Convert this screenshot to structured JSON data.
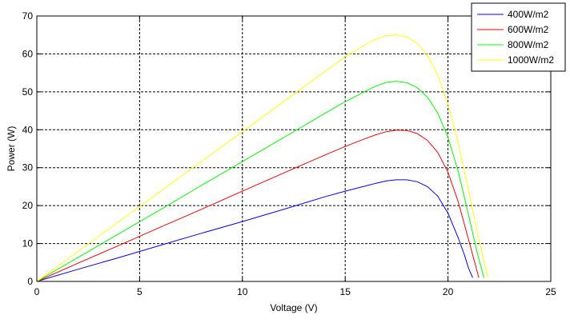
{
  "chart_data": {
    "type": "line",
    "xlabel": "Voltage (V)",
    "ylabel": "Power (W)",
    "xlim": [
      0,
      25
    ],
    "ylim": [
      0,
      70
    ],
    "xticks": [
      0,
      5,
      10,
      15,
      20,
      25
    ],
    "yticks": [
      0,
      10,
      20,
      30,
      40,
      50,
      60,
      70
    ],
    "grid": true,
    "grid_style": "dashed",
    "legend_position": "top-right",
    "series": [
      {
        "name": "400W/m2",
        "color": "#0000ff",
        "x": [
          0,
          2,
          4,
          6,
          8,
          10,
          12,
          14,
          15,
          16,
          16.5,
          17,
          17.5,
          18,
          18.5,
          19,
          19.5,
          20,
          20.5,
          20.8,
          21.0,
          21.2
        ],
        "y": [
          0,
          3.2,
          6.3,
          9.5,
          12.7,
          15.8,
          19.0,
          22.3,
          23.8,
          25.2,
          25.9,
          26.5,
          26.8,
          26.8,
          26.3,
          25.0,
          22.5,
          18.0,
          11.5,
          7.0,
          3.5,
          1.0
        ]
      },
      {
        "name": "600W/m2",
        "color": "#ff0000",
        "x": [
          0,
          2,
          4,
          6,
          8,
          10,
          12,
          14,
          15,
          16,
          16.5,
          17,
          17.5,
          18,
          18.5,
          19,
          19.5,
          20,
          20.5,
          21.0,
          21.3,
          21.5
        ],
        "y": [
          0,
          4.8,
          9.5,
          14.3,
          19.0,
          23.8,
          28.6,
          33.3,
          35.6,
          37.7,
          38.7,
          39.5,
          39.9,
          39.8,
          39.0,
          37.2,
          34.0,
          28.8,
          21.0,
          11.0,
          5.0,
          1.0
        ]
      },
      {
        "name": "800W/m2",
        "color": "#00ff00",
        "x": [
          0,
          2,
          4,
          6,
          8,
          10,
          12,
          14,
          15,
          16,
          16.5,
          17,
          17.5,
          18,
          18.5,
          19,
          19.5,
          20,
          20.5,
          21.0,
          21.4,
          21.75
        ],
        "y": [
          0,
          6.3,
          12.6,
          18.9,
          25.3,
          31.6,
          37.9,
          44.3,
          47.4,
          50.2,
          51.5,
          52.5,
          52.8,
          52.4,
          51.1,
          48.6,
          44.4,
          38.0,
          29.0,
          17.5,
          8.0,
          1.0
        ]
      },
      {
        "name": "1000W/m2",
        "color": "#ffff00",
        "x": [
          0,
          2,
          4,
          6,
          8,
          10,
          12,
          14,
          15,
          16,
          16.5,
          17,
          17.5,
          18,
          18.5,
          19,
          19.5,
          20,
          20.5,
          21.0,
          21.5,
          21.95
        ],
        "y": [
          0,
          7.9,
          15.8,
          23.7,
          31.6,
          39.5,
          47.4,
          55.3,
          59.2,
          62.5,
          63.9,
          64.8,
          65.0,
          64.5,
          62.8,
          59.6,
          54.5,
          46.8,
          36.5,
          24.0,
          11.0,
          1.0
        ]
      }
    ]
  }
}
